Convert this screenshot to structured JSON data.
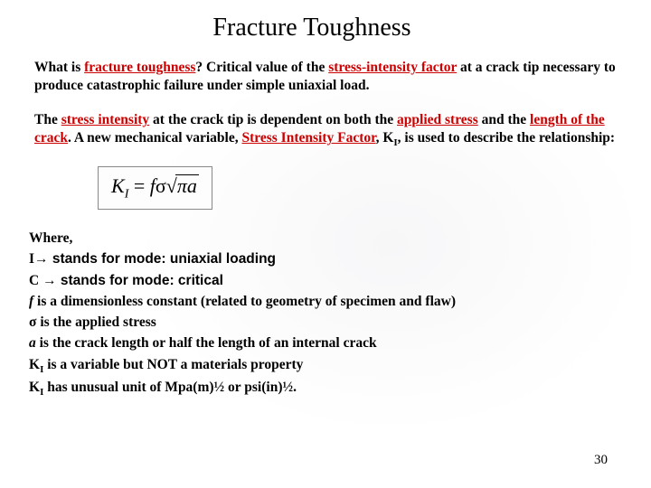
{
  "title": "Fracture Toughness",
  "para1": {
    "t1": "What is ",
    "t2": "fracture toughness",
    "t3": "? Critical value of the ",
    "t4": "stress-intensity factor",
    "t5": " at a crack tip necessary to produce catastrophic failure under simple uniaxial load."
  },
  "para2": {
    "t1": "The ",
    "t2": "stress intensity",
    "t3": " at the crack tip is dependent on both the ",
    "t4": "applied stress",
    "t5": " and the ",
    "t6": "length of the crack",
    "t7": ". A new mechanical variable, ",
    "t8": "Stress Intensity Factor",
    "t9": ", K",
    "t10": "I",
    "t11": ", is used to describe the relationship:"
  },
  "formula": {
    "K": "K",
    "I": "I",
    "eq": " = ",
    "f": "f",
    "sigma": "σ",
    "pi": "π",
    "a": "a"
  },
  "where": {
    "w0": "Where,",
    "w1a": "I",
    "w1b": "→ stands for mode: uniaxial loading",
    "w2a": "C ",
    "w2b": "→ stands for mode: critical",
    "w3a": "f",
    "w3b": " is a dimensionless constant (related to geometry of specimen and flaw)",
    "w4a": "σ",
    "w4b": "  is the applied stress",
    "w5a": "a",
    "w5b": " is the crack length or half the length of an internal crack",
    "w6a": "K",
    "w6b": "I",
    "w6c": " is a variable but NOT a materials property",
    "w7a": "K",
    "w7b": "I",
    "w7c": " has unusual unit of Mpa(m)",
    "w7d": "½",
    "w7e": " or psi(in)",
    "w7f": "½",
    "w7g": "."
  },
  "pagenum": "30"
}
